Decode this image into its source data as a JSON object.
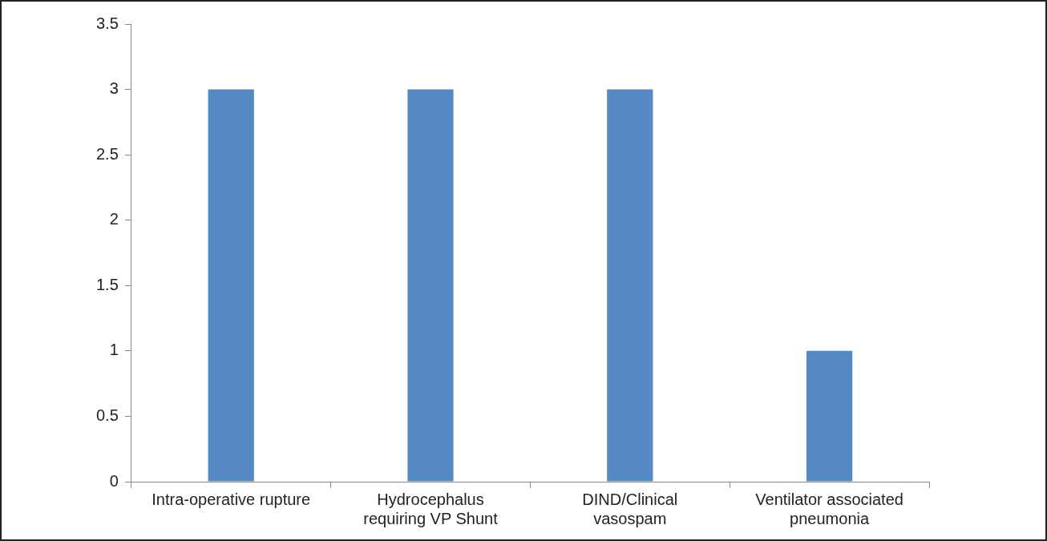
{
  "chart_data": {
    "type": "bar",
    "categories": [
      "Intra-operative rupture",
      "Hydrocephalus requiring VP Shunt",
      "DIND/Clinical vasospam",
      "Ventilator associated pneumonia"
    ],
    "values": [
      3,
      3,
      3,
      1
    ],
    "color": "#5589c4",
    "ylim": [
      0,
      3.5
    ],
    "yticks": [
      0,
      0.5,
      1,
      1.5,
      2,
      2.5,
      3,
      3.5
    ],
    "grid": false,
    "legend": false
  }
}
